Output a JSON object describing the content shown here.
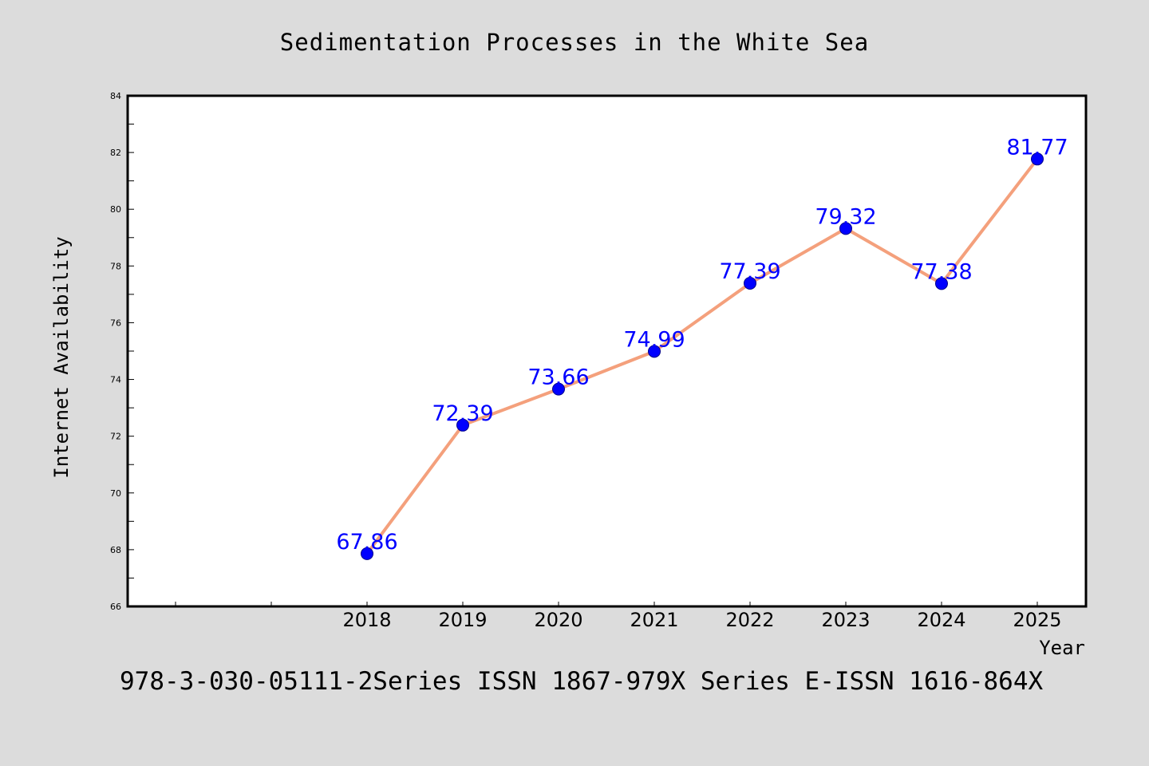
{
  "chart_data": {
    "type": "line",
    "title": "Sedimentation Processes in the White Sea",
    "xlabel": "Year",
    "ylabel": "Internet Availability",
    "categories": [
      "2018",
      "2019",
      "2020",
      "2021",
      "2022",
      "2023",
      "2024",
      "2025"
    ],
    "values": [
      67.86,
      72.39,
      73.66,
      74.99,
      77.39,
      79.32,
      77.38,
      81.77
    ],
    "data_labels": [
      "67.86",
      "72.39",
      "73.66",
      "74.99",
      "77.39",
      "79.32",
      "77.38",
      "81.77"
    ],
    "ylim": [
      66,
      84
    ],
    "yticks": [
      "66",
      "68",
      "70",
      "72",
      "74",
      "76",
      "78",
      "80",
      "82",
      "84"
    ],
    "grid": false,
    "legend": "none",
    "line_color": "#f4a07c",
    "marker_color": "#0000ff",
    "label_color": "#0000ff",
    "background_color": "#dcdcdc",
    "plot_background_color": "#ffffff"
  },
  "footer": {
    "text": "978-3-030-05111-2Series ISSN 1867-979X Series E-ISSN 1616-864X"
  }
}
